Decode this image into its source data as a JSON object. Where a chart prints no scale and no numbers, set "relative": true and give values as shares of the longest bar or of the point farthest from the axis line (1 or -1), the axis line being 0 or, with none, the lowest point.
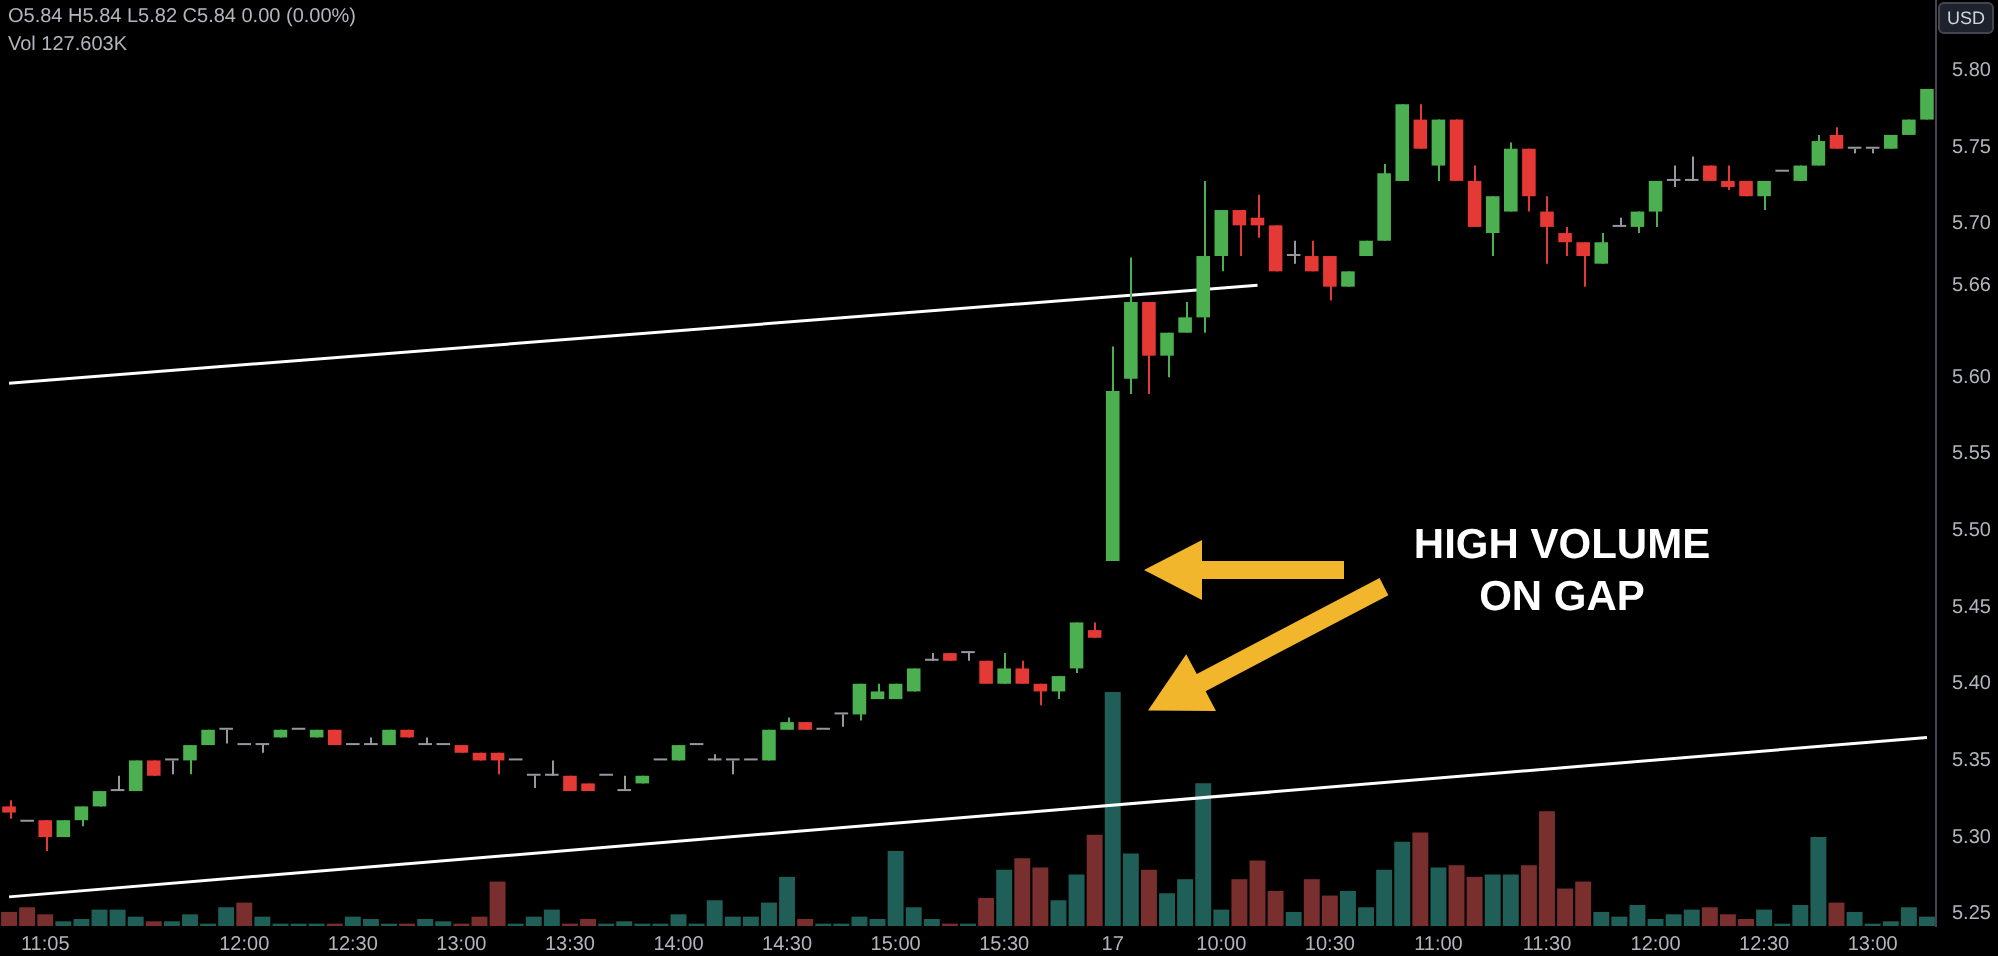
{
  "chart_data": [
    {
      "type": "candlestick",
      "categories": [
        null,
        null,
        "11:05",
        null,
        null,
        null,
        null,
        null,
        null,
        null,
        null,
        null,
        null,
        "12:00",
        null,
        null,
        null,
        null,
        null,
        "12:30",
        null,
        null,
        null,
        null,
        null,
        "13:00",
        null,
        null,
        null,
        null,
        null,
        "13:30",
        null,
        null,
        null,
        null,
        null,
        "14:00",
        null,
        null,
        null,
        null,
        null,
        "14:30",
        null,
        null,
        null,
        null,
        null,
        "15:00",
        null,
        null,
        null,
        null,
        null,
        "15:30",
        null,
        null,
        null,
        null,
        null,
        "17",
        null,
        null,
        null,
        null,
        null,
        "10:00",
        null,
        null,
        null,
        null,
        null,
        "10:30",
        null,
        null,
        null,
        null,
        null,
        "11:00",
        null,
        null,
        null,
        null,
        null,
        "11:30",
        null,
        null,
        null,
        null,
        null,
        "12:00",
        null,
        null,
        null,
        null,
        null,
        "12:30",
        null,
        null,
        null,
        null,
        null,
        "13:00",
        null,
        null,
        null
      ],
      "ohlc": [
        [
          5.32,
          5.324,
          5.312,
          5.316
        ],
        [
          5.31,
          5.31,
          5.31,
          5.31
        ],
        [
          5.311,
          5.311,
          5.291,
          5.3
        ],
        [
          5.3,
          5.311,
          5.3,
          5.311
        ],
        [
          5.311,
          5.32,
          5.307,
          5.32
        ],
        [
          5.32,
          5.33,
          5.32,
          5.33
        ],
        [
          5.33,
          5.34,
          5.33,
          5.33
        ],
        [
          5.33,
          5.35,
          5.33,
          5.35
        ],
        [
          5.35,
          5.35,
          5.34,
          5.34
        ],
        [
          5.35,
          5.35,
          5.341,
          5.35
        ],
        [
          5.35,
          5.36,
          5.341,
          5.36
        ],
        [
          5.36,
          5.37,
          5.36,
          5.37
        ],
        [
          5.37,
          5.37,
          5.361,
          5.37
        ],
        [
          5.36,
          5.36,
          5.36,
          5.36
        ],
        [
          5.36,
          5.36,
          5.355,
          5.36
        ],
        [
          5.365,
          5.37,
          5.365,
          5.37
        ],
        [
          5.37,
          5.37,
          5.37,
          5.37
        ],
        [
          5.365,
          5.37,
          5.365,
          5.37
        ],
        [
          5.37,
          5.37,
          5.36,
          5.36
        ],
        [
          5.36,
          5.36,
          5.36,
          5.36
        ],
        [
          5.36,
          5.365,
          5.36,
          5.36
        ],
        [
          5.36,
          5.37,
          5.36,
          5.37
        ],
        [
          5.37,
          5.37,
          5.365,
          5.365
        ],
        [
          5.36,
          5.365,
          5.36,
          5.36
        ],
        [
          5.36,
          5.36,
          5.36,
          5.36
        ],
        [
          5.36,
          5.36,
          5.355,
          5.355
        ],
        [
          5.355,
          5.355,
          5.35,
          5.35
        ],
        [
          5.355,
          5.355,
          5.341,
          5.35
        ],
        [
          5.35,
          5.35,
          5.35,
          5.35
        ],
        [
          5.34,
          5.34,
          5.332,
          5.34
        ],
        [
          5.34,
          5.35,
          5.34,
          5.34
        ],
        [
          5.34,
          5.34,
          5.33,
          5.33
        ],
        [
          5.335,
          5.335,
          5.33,
          5.33
        ],
        [
          5.34,
          5.34,
          5.34,
          5.34
        ],
        [
          5.33,
          5.34,
          5.33,
          5.33
        ],
        [
          5.335,
          5.34,
          5.335,
          5.34
        ],
        [
          5.35,
          5.35,
          5.35,
          5.35
        ],
        [
          5.35,
          5.36,
          5.35,
          5.36
        ],
        [
          5.36,
          5.36,
          5.36,
          5.36
        ],
        [
          5.35,
          5.354,
          5.35,
          5.35
        ],
        [
          5.35,
          5.35,
          5.341,
          5.35
        ],
        [
          5.35,
          5.35,
          5.35,
          5.35
        ],
        [
          5.35,
          5.37,
          5.35,
          5.37
        ],
        [
          5.37,
          5.378,
          5.37,
          5.375
        ],
        [
          5.375,
          5.375,
          5.37,
          5.37
        ],
        [
          5.37,
          5.37,
          5.37,
          5.37
        ],
        [
          5.38,
          5.38,
          5.372,
          5.38
        ],
        [
          5.38,
          5.4,
          5.376,
          5.4
        ],
        [
          5.39,
          5.4,
          5.39,
          5.395
        ],
        [
          5.39,
          5.4,
          5.39,
          5.4
        ],
        [
          5.395,
          5.41,
          5.395,
          5.41
        ],
        [
          5.415,
          5.42,
          5.415,
          5.415
        ],
        [
          5.42,
          5.42,
          5.415,
          5.415
        ],
        [
          5.42,
          5.42,
          5.415,
          5.42
        ],
        [
          5.415,
          5.415,
          5.4,
          5.4
        ],
        [
          5.4,
          5.42,
          5.4,
          5.41
        ],
        [
          5.41,
          5.415,
          5.4,
          5.4
        ],
        [
          5.4,
          5.4,
          5.386,
          5.395
        ],
        [
          5.395,
          5.405,
          5.39,
          5.405
        ],
        [
          5.41,
          5.44,
          5.407,
          5.44
        ],
        [
          5.435,
          5.44,
          5.43,
          5.43
        ],
        [
          5.48,
          5.62,
          5.48,
          5.591
        ],
        [
          5.599,
          5.678,
          5.589,
          5.649
        ],
        [
          5.649,
          5.649,
          5.589,
          5.614
        ],
        [
          5.614,
          5.629,
          5.6,
          5.629
        ],
        [
          5.629,
          5.649,
          5.629,
          5.639
        ],
        [
          5.639,
          5.728,
          5.629,
          5.679
        ],
        [
          5.679,
          5.709,
          5.669,
          5.709
        ],
        [
          5.709,
          5.709,
          5.679,
          5.699
        ],
        [
          5.704,
          5.719,
          5.691,
          5.699
        ],
        [
          5.699,
          5.699,
          5.669,
          5.669
        ],
        [
          5.679,
          5.689,
          5.674,
          5.679
        ],
        [
          5.679,
          5.689,
          5.669,
          5.669
        ],
        [
          5.679,
          5.679,
          5.65,
          5.659
        ],
        [
          5.659,
          5.669,
          5.659,
          5.669
        ],
        [
          5.679,
          5.689,
          5.679,
          5.689
        ],
        [
          5.689,
          5.739,
          5.689,
          5.733
        ],
        [
          5.728,
          5.778,
          5.728,
          5.778
        ],
        [
          5.768,
          5.778,
          5.749,
          5.749
        ],
        [
          5.738,
          5.768,
          5.728,
          5.768
        ],
        [
          5.768,
          5.768,
          5.728,
          5.728
        ],
        [
          5.728,
          5.738,
          5.698,
          5.698
        ],
        [
          5.694,
          5.718,
          5.679,
          5.718
        ],
        [
          5.708,
          5.753,
          5.708,
          5.749
        ],
        [
          5.749,
          5.749,
          5.708,
          5.718
        ],
        [
          5.708,
          5.718,
          5.674,
          5.698
        ],
        [
          5.694,
          5.698,
          5.679,
          5.688
        ],
        [
          5.688,
          5.688,
          5.659,
          5.679
        ],
        [
          5.674,
          5.694,
          5.674,
          5.688
        ],
        [
          5.698,
          5.704,
          5.698,
          5.698
        ],
        [
          5.698,
          5.708,
          5.694,
          5.708
        ],
        [
          5.708,
          5.728,
          5.698,
          5.728
        ],
        [
          5.728,
          5.738,
          5.724,
          5.728
        ],
        [
          5.728,
          5.744,
          5.728,
          5.728
        ],
        [
          5.738,
          5.738,
          5.728,
          5.728
        ],
        [
          5.728,
          5.738,
          5.722,
          5.724
        ],
        [
          5.728,
          5.728,
          5.718,
          5.718
        ],
        [
          5.718,
          5.728,
          5.709,
          5.728
        ],
        [
          5.734,
          5.734,
          5.734,
          5.734
        ],
        [
          5.728,
          5.738,
          5.728,
          5.738
        ],
        [
          5.738,
          5.758,
          5.738,
          5.754
        ],
        [
          5.758,
          5.763,
          5.749,
          5.749
        ],
        [
          5.749,
          5.749,
          5.746,
          5.749
        ],
        [
          5.749,
          5.749,
          5.746,
          5.749
        ],
        [
          5.749,
          5.758,
          5.749,
          5.758
        ],
        [
          5.758,
          5.768,
          5.758,
          5.768
        ],
        [
          5.768,
          5.788,
          5.768,
          5.788
        ]
      ],
      "colors": [
        "#e53935",
        "#9598a1",
        "#e53935",
        "#4caf50",
        "#4caf50",
        "#4caf50",
        "#9598a1",
        "#4caf50",
        "#e53935",
        "#9598a1",
        "#4caf50",
        "#4caf50",
        "#9598a1",
        "#9598a1",
        "#9598a1",
        "#4caf50",
        "#9598a1",
        "#4caf50",
        "#e53935",
        "#9598a1",
        "#9598a1",
        "#4caf50",
        "#e53935",
        "#9598a1",
        "#9598a1",
        "#e53935",
        "#e53935",
        "#e53935",
        "#9598a1",
        "#9598a1",
        "#9598a1",
        "#e53935",
        "#e53935",
        "#9598a1",
        "#9598a1",
        "#4caf50",
        "#9598a1",
        "#4caf50",
        "#9598a1",
        "#9598a1",
        "#9598a1",
        "#9598a1",
        "#4caf50",
        "#4caf50",
        "#e53935",
        "#9598a1",
        "#9598a1",
        "#4caf50",
        "#4caf50",
        "#4caf50",
        "#4caf50",
        "#9598a1",
        "#e53935",
        "#9598a1",
        "#e53935",
        "#4caf50",
        "#e53935",
        "#e53935",
        "#4caf50",
        "#4caf50",
        "#e53935",
        "#4caf50",
        "#4caf50",
        "#e53935",
        "#4caf50",
        "#4caf50",
        "#4caf50",
        "#4caf50",
        "#e53935",
        "#e53935",
        "#e53935",
        "#9598a1",
        "#e53935",
        "#e53935",
        "#4caf50",
        "#4caf50",
        "#4caf50",
        "#4caf50",
        "#e53935",
        "#4caf50",
        "#e53935",
        "#e53935",
        "#4caf50",
        "#4caf50",
        "#e53935",
        "#e53935",
        "#e53935",
        "#e53935",
        "#4caf50",
        "#9598a1",
        "#4caf50",
        "#4caf50",
        "#9598a1",
        "#9598a1",
        "#e53935",
        "#e53935",
        "#e53935",
        "#4caf50",
        "#9598a1",
        "#4caf50",
        "#4caf50",
        "#e53935",
        "#9598a1",
        "#9598a1",
        "#4caf50",
        "#4caf50",
        "#4caf50"
      ],
      "series": [
        {
          "type": "line",
          "color": "#ffffff",
          "values": [
            5.596,
            null,
            null,
            null,
            null,
            null,
            null,
            null,
            null,
            null,
            null,
            null,
            null,
            null,
            null,
            null,
            null,
            null,
            null,
            null,
            null,
            null,
            null,
            null,
            null,
            null,
            null,
            null,
            null,
            null,
            null,
            null,
            null,
            null,
            null,
            null,
            null,
            null,
            null,
            null,
            null,
            null,
            null,
            null,
            null,
            null,
            null,
            null,
            null,
            null,
            null,
            null,
            null,
            null,
            null,
            null,
            null,
            null,
            null,
            null,
            null,
            null,
            null,
            null,
            null,
            null,
            null,
            null,
            null,
            5.66,
            null,
            null,
            null,
            null,
            null,
            null,
            null,
            null,
            null,
            null,
            null,
            null,
            null,
            null,
            null,
            null,
            null,
            null,
            null,
            null,
            null,
            null,
            null,
            null,
            null,
            null,
            null,
            null,
            null,
            null,
            null,
            null,
            null,
            null,
            null,
            null,
            null
          ]
        },
        {
          "type": "line",
          "color": "#ffffff",
          "values": [
            5.261,
            null,
            null,
            null,
            null,
            null,
            null,
            null,
            null,
            null,
            null,
            null,
            null,
            null,
            null,
            null,
            null,
            null,
            null,
            null,
            null,
            null,
            null,
            null,
            null,
            null,
            null,
            null,
            null,
            null,
            null,
            null,
            null,
            null,
            null,
            null,
            null,
            null,
            null,
            null,
            null,
            null,
            null,
            null,
            null,
            null,
            null,
            null,
            null,
            null,
            null,
            null,
            null,
            null,
            null,
            null,
            null,
            null,
            null,
            null,
            null,
            null,
            null,
            null,
            null,
            null,
            null,
            null,
            null,
            null,
            null,
            null,
            null,
            null,
            null,
            null,
            null,
            null,
            null,
            null,
            null,
            null,
            null,
            null,
            null,
            null,
            null,
            null,
            null,
            null,
            null,
            null,
            null,
            null,
            null,
            null,
            null,
            null,
            null,
            null,
            null,
            null,
            null,
            null,
            null,
            null,
            5.365
          ]
        }
      ],
      "ylim": [
        5.242,
        5.846
      ],
      "yticks": [
        5.25,
        {
          "value": 5.3,
          "label": "5.30"
        },
        5.35,
        {
          "value": 5.4,
          "label": "5.40"
        },
        5.45,
        {
          "value": 5.5,
          "label": "5.50"
        },
        5.55,
        {
          "value": 5.6,
          "label": "5.60"
        },
        5.66,
        {
          "value": 5.7,
          "label": "5.70"
        },
        5.75,
        {
          "value": 5.8,
          "label": "5.80"
        }
      ],
      "ylabel": "USD",
      "annotations": [
        "O5.84 H5.84 L5.82 C5.84 0.00 (0.00%)",
        "Vol 127.603K",
        "HIGH VOLUME ON GAP"
      ]
    },
    {
      "type": "bar",
      "relative": true,
      "tick_labels": false,
      "categories": [
        null,
        null,
        null,
        null,
        null,
        null,
        null,
        null,
        null,
        null,
        null,
        null,
        null,
        null,
        null,
        null,
        null,
        null,
        null,
        null,
        null,
        null,
        null,
        null,
        null,
        null,
        null,
        null,
        null,
        null,
        null,
        null,
        null,
        null,
        null,
        null,
        null,
        null,
        null,
        null,
        null,
        null,
        null,
        null,
        null,
        null,
        null,
        null,
        null,
        null,
        null,
        null,
        null,
        null,
        null,
        null,
        null,
        null,
        null,
        null,
        null,
        null,
        null,
        null,
        null,
        null,
        null,
        null,
        null,
        null,
        null,
        null,
        null,
        null,
        null,
        null,
        null,
        null,
        null,
        null,
        null,
        null,
        null,
        null,
        null,
        null,
        null,
        null,
        null,
        null,
        null,
        null,
        null,
        null,
        null,
        null,
        null,
        null,
        null,
        null,
        null,
        null,
        null,
        null,
        null,
        null,
        null
      ],
      "values": [
        0.06,
        0.08,
        0.05,
        0.02,
        0.03,
        0.07,
        0.07,
        0.04,
        0.02,
        0.02,
        0.05,
        0.01,
        0.08,
        0.1,
        0.04,
        0.01,
        0.01,
        0.01,
        0.01,
        0.04,
        0.03,
        0.01,
        0.01,
        0.03,
        0.02,
        0.01,
        0.04,
        0.19,
        0.01,
        0.04,
        0.07,
        0.01,
        0.03,
        0.01,
        0.02,
        0.01,
        0.01,
        0.05,
        0.01,
        0.11,
        0.04,
        0.04,
        0.1,
        0.21,
        0.03,
        0.01,
        0.01,
        0.04,
        0.03,
        0.32,
        0.08,
        0.03,
        0.01,
        0.01,
        0.12,
        0.24,
        0.29,
        0.25,
        0.11,
        0.22,
        0.39,
        1,
        0.31,
        0.24,
        0.14,
        0.2,
        0.61,
        0.07,
        0.2,
        0.28,
        0.15,
        0.06,
        0.2,
        0.13,
        0.15,
        0.08,
        0.24,
        0.36,
        0.4,
        0.25,
        0.26,
        0.21,
        0.22,
        0.22,
        0.26,
        0.49,
        0.16,
        0.19,
        0.06,
        0.04,
        0.09,
        0.03,
        0.05,
        0.07,
        0.08,
        0.05,
        0.03,
        0.07,
        0.01,
        0.09,
        0.38,
        0.1,
        0.06,
        0.01,
        0.02,
        0.08,
        0.04
      ],
      "colors": [
        "#7a2f2f",
        "#7a2f2f",
        "#7a2f2f",
        "#1f5f58",
        "#1f5f58",
        "#1f5f58",
        "#1f5f58",
        "#1f5f58",
        "#7a2f2f",
        "#1f5f58",
        "#1f5f58",
        "#1f5f58",
        "#1f5f58",
        "#7a2f2f",
        "#1f5f58",
        "#1f5f58",
        "#1f5f58",
        "#1f5f58",
        "#7a2f2f",
        "#1f5f58",
        "#1f5f58",
        "#1f5f58",
        "#7a2f2f",
        "#1f5f58",
        "#1f5f58",
        "#7a2f2f",
        "#7a2f2f",
        "#7a2f2f",
        "#1f5f58",
        "#1f5f58",
        "#1f5f58",
        "#7a2f2f",
        "#7a2f2f",
        "#1f5f58",
        "#1f5f58",
        "#1f5f58",
        "#1f5f58",
        "#1f5f58",
        "#1f5f58",
        "#1f5f58",
        "#1f5f58",
        "#1f5f58",
        "#1f5f58",
        "#1f5f58",
        "#7a2f2f",
        "#1f5f58",
        "#1f5f58",
        "#1f5f58",
        "#1f5f58",
        "#1f5f58",
        "#1f5f58",
        "#1f5f58",
        "#7a2f2f",
        "#1f5f58",
        "#7a2f2f",
        "#1f5f58",
        "#7a2f2f",
        "#7a2f2f",
        "#1f5f58",
        "#1f5f58",
        "#7a2f2f",
        "#1f5f58",
        "#1f5f58",
        "#7a2f2f",
        "#1f5f58",
        "#1f5f58",
        "#1f5f58",
        "#1f5f58",
        "#7a2f2f",
        "#7a2f2f",
        "#7a2f2f",
        "#1f5f58",
        "#7a2f2f",
        "#7a2f2f",
        "#1f5f58",
        "#1f5f58",
        "#1f5f58",
        "#1f5f58",
        "#7a2f2f",
        "#1f5f58",
        "#7a2f2f",
        "#7a2f2f",
        "#1f5f58",
        "#1f5f58",
        "#7a2f2f",
        "#7a2f2f",
        "#7a2f2f",
        "#7a2f2f",
        "#1f5f58",
        "#1f5f58",
        "#1f5f58",
        "#1f5f58",
        "#1f5f58",
        "#1f5f58",
        "#7a2f2f",
        "#7a2f2f",
        "#7a2f2f",
        "#1f5f58",
        "#1f5f58",
        "#1f5f58",
        "#1f5f58",
        "#7a2f2f",
        "#1f5f58",
        "#1f5f58",
        "#1f5f58",
        "#1f5f58",
        "#1f5f58"
      ]
    }
  ]
}
